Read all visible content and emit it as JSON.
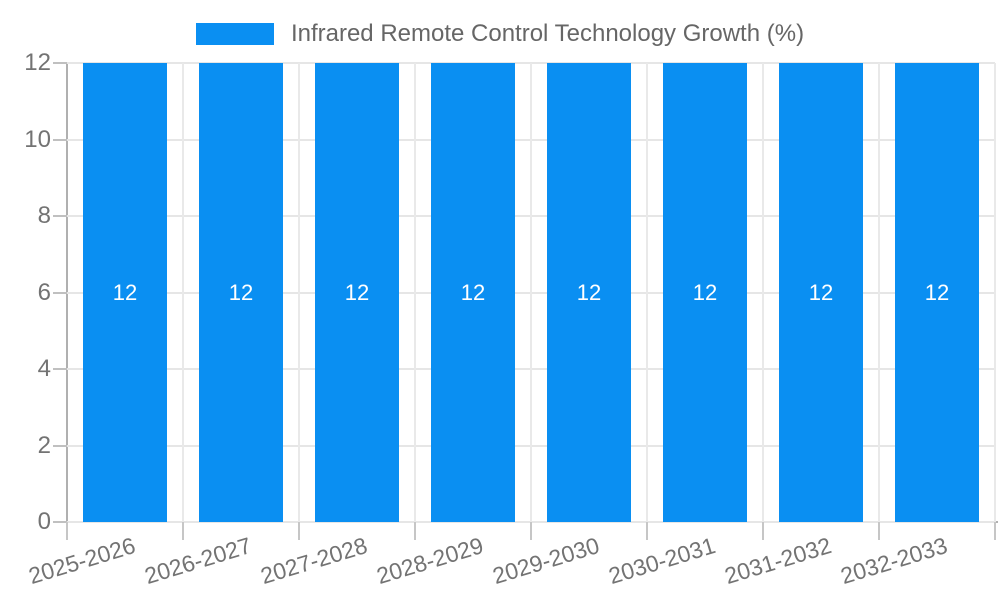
{
  "legend": {
    "label": "Infrared Remote Control Technology Growth (%)"
  },
  "chart_data": {
    "type": "bar",
    "title": "Infrared Remote Control Technology Growth (%)",
    "series": [
      {
        "name": "Infrared Remote Control Technology Growth (%)",
        "values": [
          12,
          12,
          12,
          12,
          12,
          12,
          12,
          12
        ]
      }
    ],
    "categories": [
      "2025-2026",
      "2026-2027",
      "2027-2028",
      "2028-2029",
      "2029-2030",
      "2030-2031",
      "2031-2032",
      "2032-2033"
    ],
    "values": [
      12,
      12,
      12,
      12,
      12,
      12,
      12,
      12
    ],
    "value_labels": [
      "12",
      "12",
      "12",
      "12",
      "12",
      "12",
      "12",
      "12"
    ],
    "xlabel": "",
    "ylabel": "",
    "ylim": [
      0,
      12
    ],
    "y_ticks": [
      0,
      2,
      4,
      6,
      8,
      10,
      12
    ],
    "grid": true,
    "legend_position": "top",
    "colors": {
      "bar_fill": "#0a8ff2",
      "value_label": "#ffffff",
      "grid_line": "#e6e6e6",
      "axis_line": "#b0b0b0",
      "tick_label": "#737373",
      "legend_text": "#666666",
      "background": "#ffffff"
    }
  }
}
